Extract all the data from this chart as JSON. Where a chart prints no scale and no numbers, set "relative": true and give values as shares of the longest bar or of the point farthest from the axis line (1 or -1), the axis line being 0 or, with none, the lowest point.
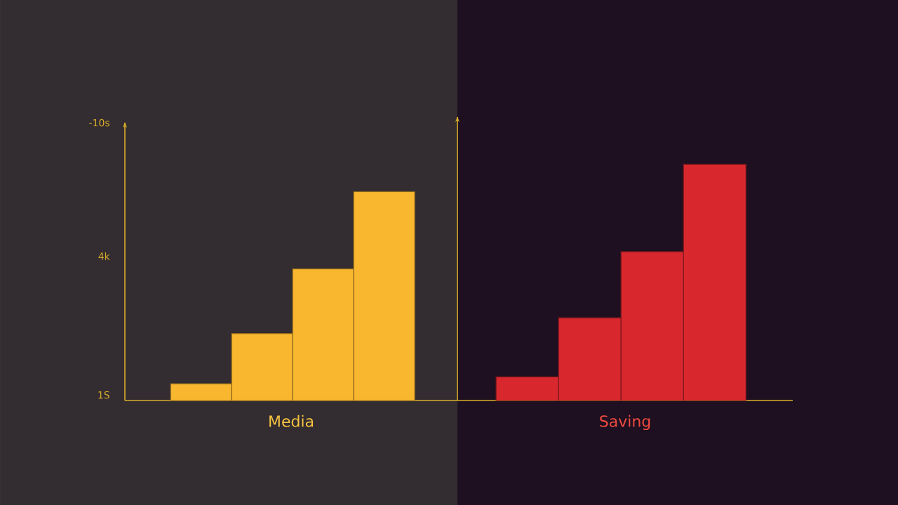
{
  "chart_data": [
    {
      "type": "bar",
      "relative": true,
      "categories": [
        null,
        null,
        null,
        null
      ],
      "values": [
        0.08,
        0.32,
        0.63,
        1.0
      ],
      "color": "#f9b730",
      "xlabel": "Media",
      "annotations": [
        "-10s",
        "4k",
        "1S"
      ]
    },
    {
      "type": "bar",
      "relative": true,
      "categories": [
        null,
        null,
        null,
        null
      ],
      "values": [
        0.1,
        0.35,
        0.63,
        1.0
      ],
      "color": "#d8282e",
      "xlabel": "Saving"
    }
  ]
}
